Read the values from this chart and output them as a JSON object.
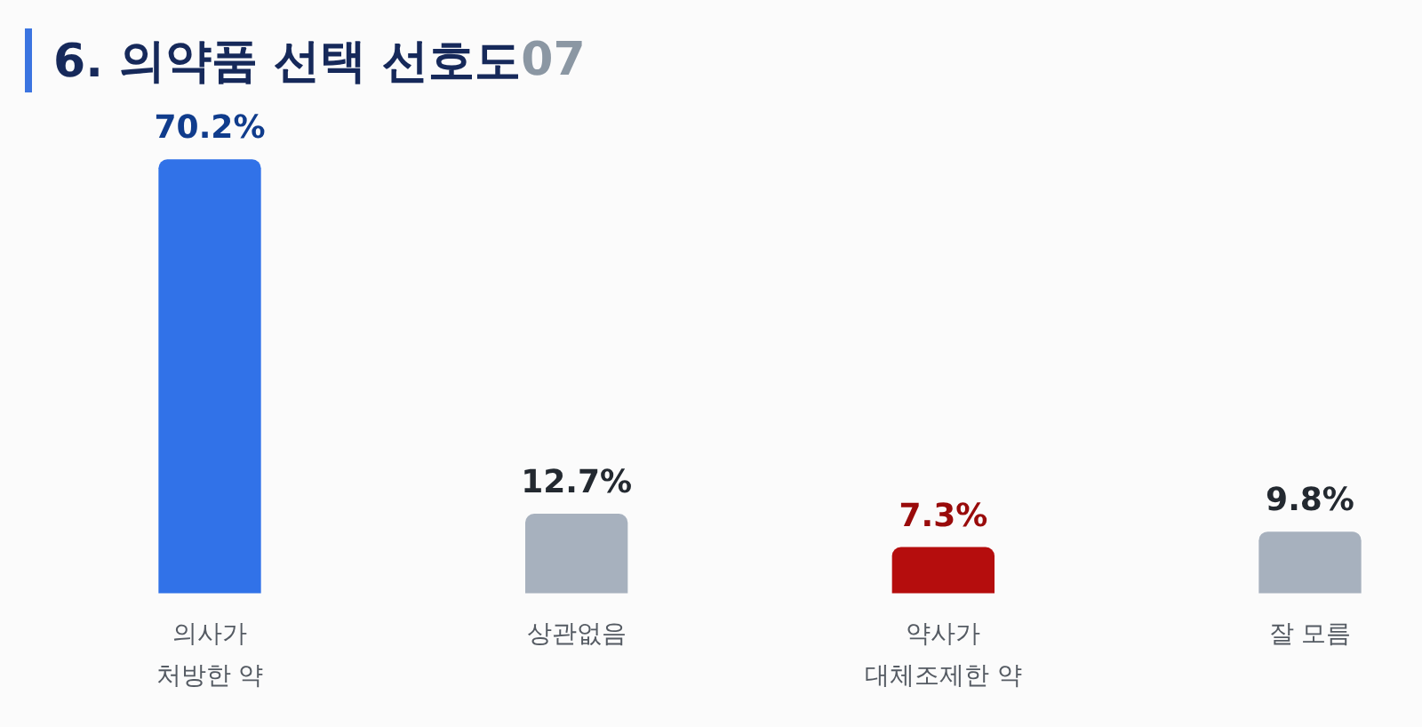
{
  "chart_data": {
    "type": "bar",
    "title": "6. 의약품 선택 선호도",
    "annotations": [
      "07"
    ],
    "categories": [
      "의사가\n처방한 약",
      "상관없음",
      "약사가\n대체조제한 약",
      "잘 모름"
    ],
    "values": [
      70.2,
      12.7,
      7.3,
      9.8
    ],
    "colors": [
      "#3172e8",
      "#a7b1be",
      "#b50d0d",
      "#a7b1be"
    ],
    "value_labels": [
      "70.2%",
      "12.7%",
      "7.3%",
      "9.8%"
    ],
    "tick_labels": "x"
  }
}
